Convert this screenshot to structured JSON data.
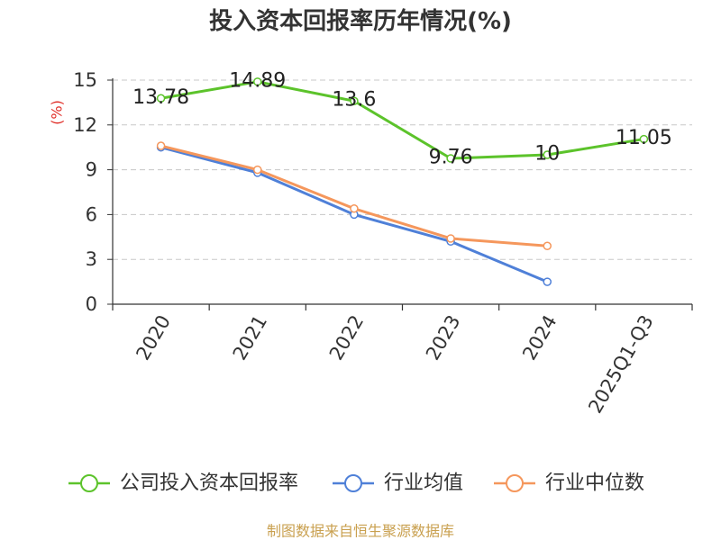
{
  "footer": {
    "source_note": "制图数据来自恒生聚源数据库"
  },
  "colors": {
    "axis": "#333333",
    "grid": "#c8c8c8",
    "ylabel": "#e0302a",
    "footer": "#c9a04f"
  },
  "chart_data": {
    "type": "line",
    "title": "投入资本回报率历年情况(%)",
    "xlabel": "",
    "ylabel": "(%)",
    "categories": [
      "2020",
      "2021",
      "2022",
      "2023",
      "2024",
      "2025Q1-Q3"
    ],
    "ylim": [
      0,
      15
    ],
    "yticks": [
      0,
      3,
      6,
      9,
      12,
      15
    ],
    "grid": true,
    "legend": "bottom",
    "series": [
      {
        "name": "公司投入资本回报率",
        "color": "#5cc32b",
        "show_labels": true,
        "values": [
          13.78,
          14.89,
          13.6,
          9.76,
          10,
          11.05
        ]
      },
      {
        "name": "行业均值",
        "color": "#4f80d8",
        "show_labels": false,
        "values": [
          10.5,
          8.8,
          6.0,
          4.2,
          1.5,
          null
        ]
      },
      {
        "name": "行业中位数",
        "color": "#f5975c",
        "show_labels": false,
        "values": [
          10.6,
          9.0,
          6.4,
          4.4,
          3.9,
          null
        ]
      }
    ]
  }
}
